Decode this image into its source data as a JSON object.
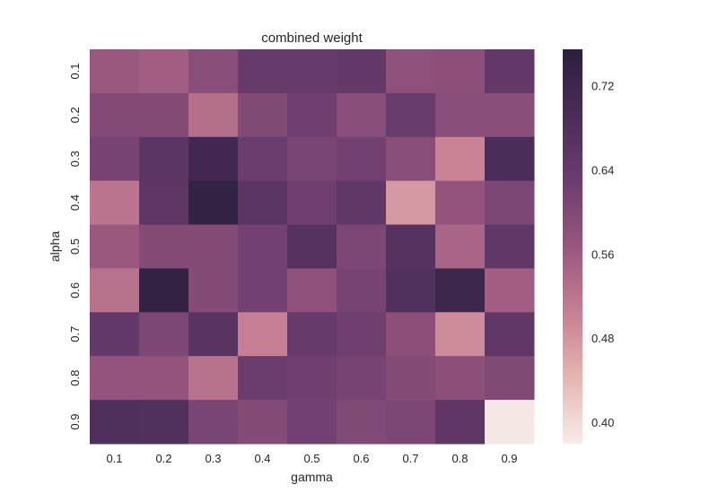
{
  "chart_data": {
    "type": "heatmap",
    "title": "combined weight",
    "xlabel": "gamma",
    "ylabel": "alpha",
    "x_categories": [
      "0.1",
      "0.2",
      "0.3",
      "0.4",
      "0.5",
      "0.6",
      "0.7",
      "0.8",
      "0.9"
    ],
    "y_categories": [
      "0.1",
      "0.2",
      "0.3",
      "0.4",
      "0.5",
      "0.6",
      "0.7",
      "0.8",
      "0.9"
    ],
    "values": [
      [
        0.565,
        0.555,
        0.59,
        0.64,
        0.64,
        0.645,
        0.58,
        0.585,
        0.645
      ],
      [
        0.595,
        0.595,
        0.53,
        0.6,
        0.625,
        0.59,
        0.635,
        0.59,
        0.59
      ],
      [
        0.615,
        0.66,
        0.71,
        0.63,
        0.61,
        0.62,
        0.59,
        0.5,
        0.69
      ],
      [
        0.52,
        0.655,
        0.74,
        0.66,
        0.625,
        0.65,
        0.475,
        0.575,
        0.605
      ],
      [
        0.565,
        0.595,
        0.595,
        0.62,
        0.67,
        0.605,
        0.67,
        0.545,
        0.65
      ],
      [
        0.525,
        0.74,
        0.595,
        0.62,
        0.58,
        0.615,
        0.675,
        0.72,
        0.555
      ],
      [
        0.645,
        0.605,
        0.665,
        0.505,
        0.64,
        0.625,
        0.585,
        0.49,
        0.65
      ],
      [
        0.575,
        0.575,
        0.525,
        0.63,
        0.625,
        0.615,
        0.595,
        0.585,
        0.6
      ],
      [
        0.68,
        0.675,
        0.61,
        0.595,
        0.62,
        0.6,
        0.605,
        0.655,
        0.385
      ]
    ],
    "colorbar": {
      "min": 0.38,
      "max": 0.755,
      "ticks": [
        "0.40",
        "0.48",
        "0.56",
        "0.64",
        "0.72"
      ],
      "colormap": [
        "#f7ecea",
        "#e6b6b1",
        "#c67f93",
        "#98567e",
        "#6b3d6f",
        "#4a2c58",
        "#2b1f3d"
      ]
    },
    "grid": false,
    "legend": "colorbar-right"
  }
}
